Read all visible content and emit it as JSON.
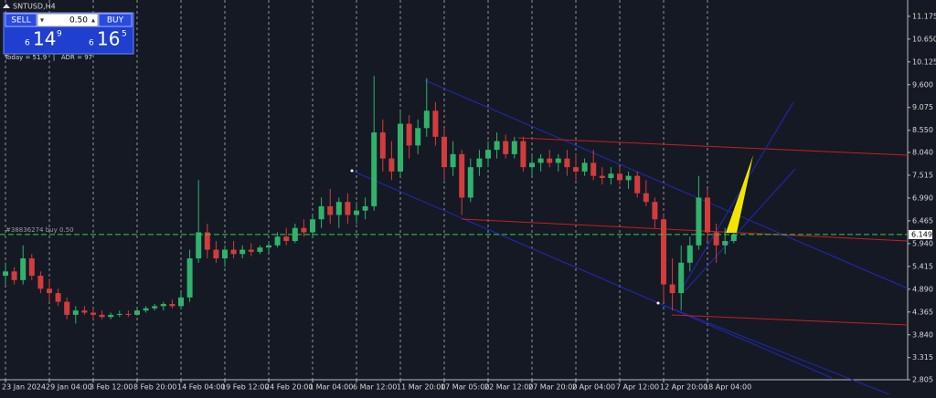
{
  "window": {
    "symbol": "SNTUSD,H4",
    "order_label": "#38836274 buy 0.50"
  },
  "trade_panel": {
    "sell_label": "SELL",
    "lot": "0.50",
    "buy_label": "BUY",
    "bid": {
      "big": "6",
      "main": "14",
      "small": "9"
    },
    "ask": {
      "big": "6",
      "main": "16",
      "small": "5"
    },
    "stats": "Today = 51.9   |   ADR = 97"
  },
  "chart_data": {
    "type": "candlestick",
    "categories": [
      "23 Jan 2024",
      null,
      null,
      null,
      null,
      "29 Jan 04:00",
      null,
      null,
      null,
      null,
      "3 Feb 12:00",
      null,
      null,
      null,
      null,
      "8 Feb 20:00",
      null,
      null,
      null,
      null,
      "14 Feb 04:00",
      null,
      null,
      null,
      null,
      "19 Feb 12:00",
      null,
      null,
      null,
      null,
      "24 Feb 20:00",
      null,
      null,
      null,
      null,
      "1 Mar 04:00",
      null,
      null,
      null,
      null,
      "6 Mar 12:00",
      null,
      null,
      null,
      null,
      "11 Mar 20:00",
      null,
      null,
      null,
      null,
      "17 Mar 05:00",
      null,
      null,
      null,
      null,
      "22 Mar 12:00",
      null,
      null,
      null,
      null,
      "27 Mar 20:00",
      null,
      null,
      null,
      null,
      "2 Apr 04:00",
      null,
      null,
      null,
      null,
      "7 Apr 12:00",
      null,
      null,
      null,
      null,
      "12 Apr 20:00",
      null,
      null,
      null,
      null,
      "18 Apr 04:00",
      null,
      null,
      null
    ],
    "open": [
      5.2,
      5.3,
      5.1,
      5.6,
      5.2,
      4.9,
      4.8,
      4.6,
      4.3,
      4.4,
      4.35,
      4.3,
      4.25,
      4.3,
      4.32,
      4.3,
      4.4,
      4.45,
      4.5,
      4.55,
      4.5,
      4.7,
      5.6,
      6.2,
      5.8,
      5.6,
      5.8,
      5.7,
      5.8,
      5.75,
      5.85,
      5.9,
      6.1,
      6.0,
      6.3,
      6.2,
      6.5,
      6.8,
      6.6,
      6.9,
      6.6,
      6.7,
      6.8,
      8.5,
      7.9,
      7.6,
      8.7,
      8.2,
      8.6,
      9.0,
      8.4,
      7.7,
      8.0,
      7.0,
      7.7,
      7.9,
      8.1,
      8.3,
      8.0,
      8.3,
      7.7,
      7.8,
      7.9,
      7.8,
      7.9,
      7.7,
      7.6,
      7.8,
      7.5,
      7.45,
      7.55,
      7.4,
      7.5,
      7.1,
      6.9,
      6.5,
      5.0,
      4.8,
      5.5,
      5.9,
      7.0,
      6.2,
      5.9,
      6.0
    ],
    "high": [
      5.5,
      5.4,
      5.9,
      5.7,
      5.3,
      5.1,
      4.9,
      4.7,
      4.5,
      4.5,
      4.45,
      4.4,
      4.35,
      4.4,
      4.4,
      4.45,
      4.5,
      4.55,
      4.6,
      4.65,
      4.8,
      5.8,
      7.4,
      6.4,
      6.0,
      5.9,
      6.0,
      5.9,
      5.95,
      5.9,
      6.0,
      6.2,
      6.3,
      6.4,
      6.5,
      6.6,
      7.0,
      7.2,
      7.0,
      7.1,
      6.9,
      7.0,
      9.8,
      8.8,
      8.3,
      9.0,
      8.9,
      8.8,
      9.75,
      9.2,
      8.6,
      8.3,
      8.1,
      7.9,
      8.1,
      8.3,
      8.5,
      8.45,
      8.4,
      8.4,
      8.0,
      8.0,
      8.1,
      8.0,
      8.1,
      8.0,
      7.9,
      8.1,
      7.7,
      7.7,
      7.7,
      7.6,
      7.6,
      7.4,
      7.0,
      6.6,
      5.6,
      5.9,
      6.1,
      7.5,
      7.2,
      6.4,
      6.3,
      6.2
    ],
    "low": [
      5.0,
      5.0,
      5.0,
      5.1,
      4.8,
      4.6,
      4.5,
      4.2,
      4.1,
      4.3,
      4.2,
      4.2,
      4.2,
      4.25,
      4.25,
      4.28,
      4.35,
      4.4,
      4.4,
      4.45,
      4.45,
      4.6,
      5.5,
      5.6,
      5.5,
      5.4,
      5.6,
      5.6,
      5.65,
      5.7,
      5.75,
      5.85,
      5.9,
      5.95,
      6.1,
      6.1,
      6.3,
      6.4,
      6.3,
      6.4,
      6.4,
      6.5,
      6.7,
      7.6,
      7.4,
      7.5,
      7.9,
      8.0,
      8.4,
      8.2,
      7.4,
      7.5,
      6.6,
      6.9,
      7.5,
      7.7,
      7.9,
      7.9,
      7.9,
      7.6,
      7.5,
      7.6,
      7.7,
      7.6,
      7.5,
      7.4,
      7.5,
      7.4,
      7.3,
      7.3,
      7.3,
      7.2,
      7.0,
      6.8,
      6.3,
      4.6,
      4.4,
      4.4,
      5.3,
      5.8,
      6.0,
      5.5,
      5.7,
      5.95
    ],
    "close": [
      5.3,
      5.1,
      5.6,
      5.2,
      4.9,
      4.8,
      4.6,
      4.3,
      4.4,
      4.35,
      4.3,
      4.25,
      4.3,
      4.32,
      4.3,
      4.4,
      4.45,
      4.5,
      4.55,
      4.5,
      4.7,
      5.6,
      6.2,
      5.8,
      5.6,
      5.8,
      5.7,
      5.8,
      5.75,
      5.85,
      5.9,
      6.1,
      6.0,
      6.3,
      6.2,
      6.5,
      6.8,
      6.6,
      6.9,
      6.6,
      6.7,
      6.8,
      8.5,
      7.9,
      7.6,
      8.7,
      8.2,
      8.6,
      9.0,
      8.4,
      7.7,
      8.0,
      7.0,
      7.7,
      7.9,
      8.1,
      8.3,
      8.0,
      8.3,
      7.7,
      7.8,
      7.9,
      7.8,
      7.9,
      7.7,
      7.6,
      7.8,
      7.5,
      7.45,
      7.55,
      7.4,
      7.5,
      7.1,
      6.9,
      6.5,
      5.0,
      4.8,
      5.5,
      5.9,
      7.0,
      6.2,
      5.9,
      6.0,
      6.149
    ],
    "up_color": "#2fb36b",
    "down_color": "#d23c3c",
    "current_price": 6.149,
    "ylim": [
      2.805,
      11.55
    ],
    "yticks": [
      11.175,
      {
        "value": 10.65,
        "label": "10.650"
      },
      10.125,
      {
        "value": 9.6,
        "label": "9.600"
      },
      9.075,
      {
        "value": 8.55,
        "label": "8.550"
      },
      {
        "value": 8.04,
        "label": "8.040"
      },
      7.515,
      {
        "value": 6.99,
        "label": "6.990"
      },
      6.465,
      {
        "value": 5.94,
        "label": "5.940"
      },
      5.415,
      {
        "value": 4.89,
        "label": "4.890"
      },
      4.365,
      {
        "value": 3.84,
        "label": "3.840"
      },
      3.315,
      2.805
    ],
    "grid": true
  }
}
